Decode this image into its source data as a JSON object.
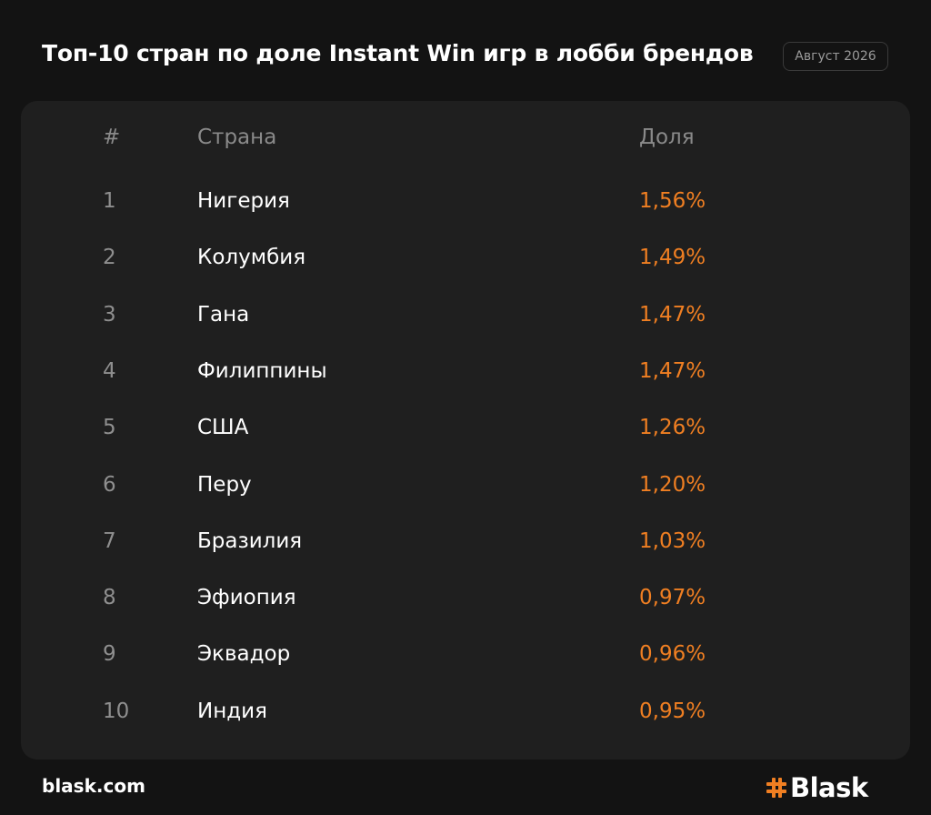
{
  "header": {
    "title": "Топ-10 стран по доле Instant Win игр в лобби брендов",
    "date_badge": "Август 2026"
  },
  "table": {
    "col_num": "#",
    "col_country": "Страна",
    "col_share": "Доля"
  },
  "chart_data": {
    "type": "table",
    "title": "Топ-10 стран по доле Instant Win игр в лобби брендов",
    "columns": [
      "#",
      "Страна",
      "Доля"
    ],
    "rows": [
      {
        "rank": "1",
        "country": "Нигерия",
        "share": "1,56%"
      },
      {
        "rank": "2",
        "country": "Колумбия",
        "share": "1,49%"
      },
      {
        "rank": "3",
        "country": "Гана",
        "share": "1,47%"
      },
      {
        "rank": "4",
        "country": "Филиппины",
        "share": "1,47%"
      },
      {
        "rank": "5",
        "country": "США",
        "share": "1,26%"
      },
      {
        "rank": "6",
        "country": "Перу",
        "share": "1,20%"
      },
      {
        "rank": "7",
        "country": "Бразилия",
        "share": "1,03%"
      },
      {
        "rank": "8",
        "country": "Эфиопия",
        "share": "0,97%"
      },
      {
        "rank": "9",
        "country": "Эквадор",
        "share": "0,96%"
      },
      {
        "rank": "10",
        "country": "Индия",
        "share": "0,95%"
      }
    ]
  },
  "footer": {
    "site": "blask.com",
    "logo_text": "Blask",
    "logo_icon": "hash-icon"
  },
  "colors": {
    "background": "#131313",
    "card": "#1f1f1f",
    "accent": "#f07f22"
  }
}
